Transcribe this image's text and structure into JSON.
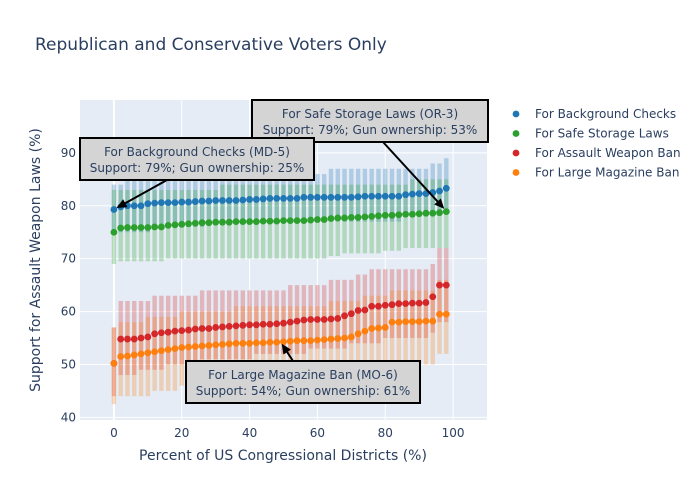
{
  "chart_data": {
    "type": "scatter",
    "title": "Republican and Conservative Voters Only",
    "xlabel": "Percent of US Congressional Districts (%)",
    "ylabel": "Support for Assault Weapon Laws (%)",
    "xlim": [
      -10,
      110
    ],
    "ylim": [
      39.5,
      100
    ],
    "xticks": [
      0,
      20,
      40,
      60,
      80,
      100
    ],
    "yticks": [
      40,
      50,
      60,
      70,
      80,
      90
    ],
    "grid": true,
    "legend_position": "right",
    "x": [
      0,
      2,
      4,
      6,
      8,
      10,
      12,
      14,
      16,
      18,
      20,
      22,
      24,
      26,
      28,
      30,
      32,
      34,
      36,
      38,
      40,
      42,
      44,
      46,
      48,
      50,
      52,
      54,
      56,
      58,
      60,
      62,
      64,
      66,
      68,
      70,
      72,
      74,
      76,
      78,
      80,
      82,
      84,
      86,
      88,
      90,
      92,
      94,
      96,
      98
    ],
    "series": [
      {
        "name": "For Background Checks",
        "color": "#1f77b4",
        "values": [
          79.3,
          79.8,
          80.0,
          80.0,
          80.0,
          80.4,
          80.5,
          80.6,
          80.6,
          80.6,
          80.7,
          80.7,
          80.8,
          80.9,
          80.9,
          81.0,
          81.0,
          81.0,
          81.0,
          81.1,
          81.2,
          81.2,
          81.3,
          81.4,
          81.4,
          81.4,
          81.4,
          81.4,
          81.6,
          81.6,
          81.6,
          81.6,
          81.6,
          81.6,
          81.6,
          81.6,
          81.7,
          81.8,
          81.8,
          81.8,
          81.8,
          81.8,
          81.8,
          82.1,
          82.2,
          82.3,
          82.3,
          82.5,
          82.8,
          83.3
        ],
        "lower": [
          75,
          75,
          75,
          75,
          75,
          75,
          76,
          76,
          76,
          76,
          76,
          76,
          76,
          76,
          77,
          77,
          77,
          77,
          77,
          77,
          77,
          77,
          77,
          77,
          77,
          77,
          77,
          77,
          77,
          77,
          77,
          77,
          77,
          77,
          77,
          77,
          77,
          77,
          77,
          77,
          77,
          77,
          77,
          78,
          78,
          78,
          78,
          78,
          79,
          79
        ],
        "upper": [
          84,
          84,
          85,
          85,
          85,
          85,
          85,
          85,
          85,
          85,
          86,
          86,
          86,
          86,
          86,
          86,
          86,
          86,
          86,
          86,
          86,
          86,
          86,
          86,
          86,
          86,
          86,
          86,
          86,
          86,
          86,
          86,
          87,
          87,
          87,
          87,
          87,
          87,
          87,
          87,
          87,
          87,
          87,
          87,
          87,
          87,
          87,
          88,
          88,
          89
        ]
      },
      {
        "name": "For Safe Storage Laws",
        "color": "#2ca02c",
        "values": [
          75.0,
          75.8,
          75.9,
          75.9,
          75.9,
          75.9,
          76.0,
          76.0,
          76.3,
          76.4,
          76.5,
          76.6,
          76.7,
          76.8,
          76.8,
          76.9,
          76.9,
          76.9,
          77.0,
          77.0,
          77.0,
          77.0,
          77.1,
          77.1,
          77.1,
          77.2,
          77.2,
          77.2,
          77.2,
          77.3,
          77.4,
          77.4,
          77.6,
          77.7,
          77.7,
          77.8,
          77.8,
          77.9,
          78.0,
          78.1,
          78.2,
          78.2,
          78.3,
          78.4,
          78.4,
          78.5,
          78.6,
          78.6,
          78.7,
          78.9
        ],
        "lower": [
          69,
          69.5,
          69.5,
          69.5,
          69.5,
          69.5,
          69.5,
          69.5,
          70,
          70,
          70,
          70,
          70,
          70,
          70,
          70,
          70,
          70,
          70,
          70,
          70,
          70,
          70,
          70,
          70,
          70,
          70,
          70,
          70,
          70,
          70,
          70,
          70.5,
          70.5,
          71,
          71,
          71,
          71,
          71,
          71,
          71.5,
          71.5,
          71.5,
          72,
          72,
          72,
          72,
          72,
          72,
          72
        ],
        "upper": [
          83,
          83,
          83,
          83,
          83,
          83,
          83,
          83,
          83,
          83,
          83,
          83,
          83,
          83,
          83,
          83,
          84,
          84,
          84,
          84,
          84,
          84,
          84,
          84,
          84,
          84,
          84,
          84,
          84,
          84,
          84,
          84,
          84,
          84,
          84,
          84,
          84,
          84,
          84,
          84,
          84,
          84,
          84,
          84,
          85,
          85,
          85,
          85,
          85,
          85
        ]
      },
      {
        "name": "For Assault Weapon Ban",
        "color": "#d62728",
        "values": [
          50.2,
          54.8,
          54.8,
          54.8,
          55.0,
          55.2,
          55.8,
          56.0,
          56.1,
          56.3,
          56.4,
          56.5,
          56.7,
          56.8,
          56.8,
          57.0,
          57.1,
          57.2,
          57.3,
          57.4,
          57.5,
          57.5,
          57.6,
          57.6,
          57.7,
          57.8,
          58.0,
          58.2,
          58.4,
          58.5,
          58.5,
          58.5,
          58.6,
          58.7,
          59.2,
          59.6,
          60.2,
          60.3,
          61.0,
          61.0,
          61.2,
          61.3,
          61.5,
          61.5,
          61.6,
          61.6,
          61.7,
          62.8,
          65.0,
          65.0
        ],
        "lower": [
          44,
          48,
          48,
          48,
          49,
          49,
          49,
          49,
          50,
          50,
          50,
          50,
          50,
          51,
          51,
          51,
          51,
          51,
          51,
          51,
          51,
          52,
          52,
          52,
          52,
          52,
          52,
          52,
          52,
          53,
          53,
          53,
          53,
          53,
          53,
          54,
          54,
          54,
          54,
          54,
          55,
          55,
          55,
          55,
          55,
          55,
          55,
          56,
          58,
          58
        ],
        "upper": [
          57,
          62,
          62,
          62,
          62,
          62,
          63,
          63,
          63,
          63,
          63,
          63,
          63,
          64,
          64,
          64,
          64,
          64,
          64,
          64,
          64,
          64,
          64,
          64,
          64,
          64,
          65,
          65,
          65,
          65,
          65,
          65,
          66,
          66,
          66,
          66,
          67,
          67,
          68,
          68,
          68,
          68,
          68,
          68,
          68,
          68,
          68,
          69,
          72,
          72
        ]
      },
      {
        "name": "For Large Magazine Ban",
        "color": "#ff7f0e",
        "values": [
          50.2,
          51.5,
          51.6,
          51.8,
          52.0,
          52.2,
          52.4,
          52.6,
          52.8,
          53.0,
          53.2,
          53.3,
          53.4,
          53.5,
          53.6,
          53.7,
          53.8,
          53.9,
          54.0,
          54.0,
          54.0,
          54.1,
          54.1,
          54.2,
          54.2,
          54.3,
          54.4,
          54.5,
          54.5,
          54.5,
          54.6,
          54.7,
          54.8,
          54.9,
          55.0,
          55.2,
          55.8,
          56.3,
          56.8,
          56.9,
          57.0,
          58.0,
          58.0,
          58.1,
          58.1,
          58.1,
          58.2,
          58.2,
          59.5,
          59.5
        ],
        "lower": [
          42.5,
          44,
          44,
          44,
          44,
          44,
          45,
          45,
          45,
          45,
          46,
          46,
          46,
          46,
          46,
          46,
          46,
          46,
          46,
          46,
          47,
          47,
          47,
          47,
          47,
          47,
          47,
          47,
          47,
          47,
          47,
          47,
          48,
          48,
          48,
          48,
          48,
          49,
          49,
          49,
          49,
          49,
          50,
          50,
          50,
          50,
          50,
          50,
          52,
          52
        ],
        "upper": [
          57,
          58,
          58,
          58,
          58,
          59,
          59,
          59,
          59,
          59,
          60,
          60,
          60,
          60,
          60,
          60,
          60,
          60,
          61,
          61,
          61,
          61,
          61,
          61,
          61,
          61,
          61,
          61,
          61,
          61,
          61,
          61,
          62,
          62,
          62,
          62,
          62,
          63,
          63,
          63,
          63,
          64,
          64,
          64,
          64,
          64,
          64,
          64,
          66,
          66
        ]
      }
    ],
    "annotations": [
      {
        "lines": [
          "For Safe Storage Laws (OR-3)",
          "Support: 79%; Gun ownership: 53%"
        ],
        "x": 98,
        "y": 79
      },
      {
        "lines": [
          "For Background Checks (MD-5)",
          "Support: 79%; Gun ownership: 25%"
        ],
        "x": 0,
        "y": 79.3
      },
      {
        "lines": [
          "For Large Magazine Ban (MO-6)",
          "Support: 54%; Gun ownership: 61%"
        ],
        "x": 49,
        "y": 54.4
      }
    ]
  }
}
